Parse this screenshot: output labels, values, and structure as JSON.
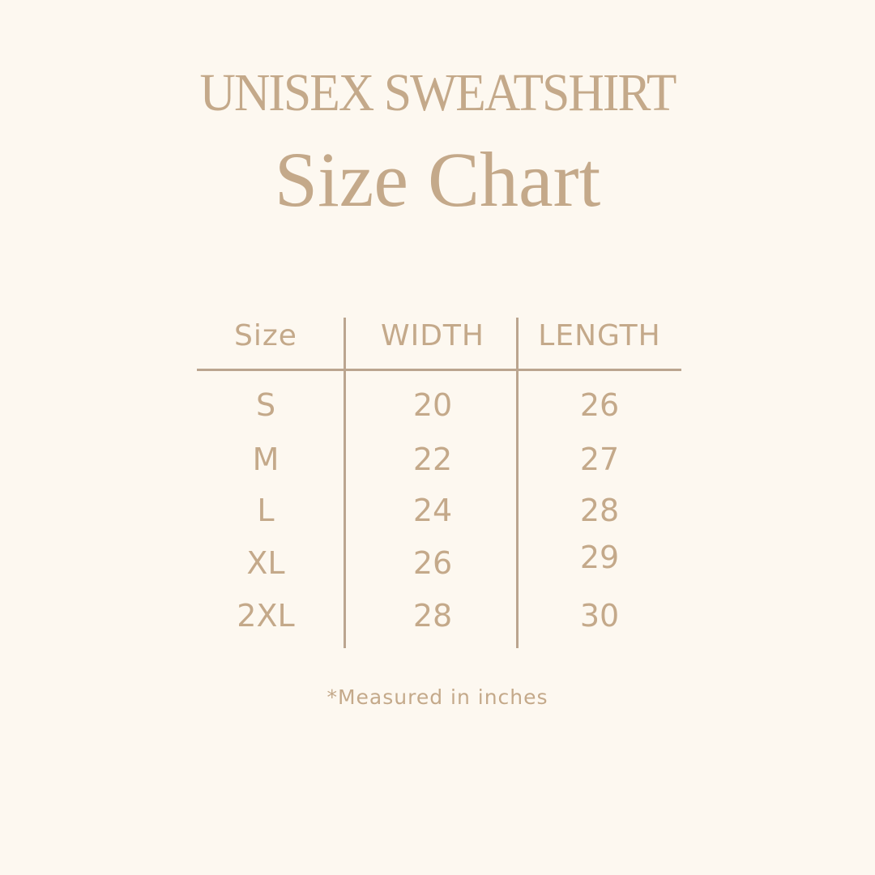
{
  "title": "UNISEX SWEATSHIRT",
  "subtitle": "Size Chart",
  "colors": {
    "background": "#fdf8f0",
    "text": "#c4a98a",
    "lines": "#bba58f"
  },
  "table": {
    "headers": [
      "Size",
      "WIDTH",
      "LENGTH"
    ],
    "rows": [
      [
        "S",
        "20",
        "26"
      ],
      [
        "M",
        "22",
        "27"
      ],
      [
        "L",
        "24",
        "28"
      ],
      [
        "XL",
        "26",
        "29"
      ],
      [
        "2XL",
        "28",
        "30"
      ]
    ]
  },
  "note": "*Measured in inches"
}
